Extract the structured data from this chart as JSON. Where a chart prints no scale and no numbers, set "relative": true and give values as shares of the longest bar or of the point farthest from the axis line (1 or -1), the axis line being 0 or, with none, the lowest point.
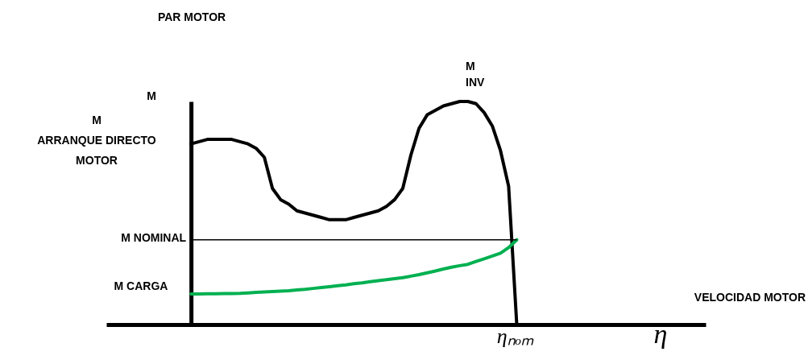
{
  "chart_data": {
    "type": "line",
    "relative": true,
    "categories": [
      null,
      null,
      null,
      null,
      null,
      null,
      null,
      null,
      null,
      null,
      null,
      null,
      null,
      null,
      null,
      null,
      null,
      null,
      null,
      null,
      null,
      null,
      null,
      null,
      null,
      null,
      null,
      null,
      null,
      null,
      null,
      null,
      null,
      null,
      null,
      null,
      null,
      null,
      null,
      null,
      null
    ],
    "series": [
      {
        "color": "#000000",
        "values": [
          0.81,
          0.82,
          0.83,
          0.83,
          0.83,
          0.83,
          0.82,
          0.81,
          0.79,
          0.75,
          0.61,
          0.56,
          0.54,
          0.51,
          0.5,
          0.49,
          0.48,
          0.47,
          0.47,
          0.47,
          0.48,
          0.49,
          0.5,
          0.51,
          0.53,
          0.56,
          0.61,
          0.76,
          0.88,
          0.94,
          0.96,
          0.98,
          0.99,
          1,
          1,
          0.99,
          0.95,
          0.89,
          0.78,
          0.62,
          0
        ]
      },
      {
        "color": "#00b050",
        "values": [
          0.137,
          0.137,
          0.138,
          0.138,
          0.139,
          0.139,
          0.14,
          0.142,
          0.144,
          0.146,
          0.148,
          0.15,
          0.152,
          0.155,
          0.158,
          0.162,
          0.166,
          0.17,
          0.174,
          0.178,
          0.183,
          0.187,
          0.192,
          0.197,
          0.201,
          0.206,
          0.21,
          0.217,
          0.224,
          0.232,
          0.24,
          0.249,
          0.257,
          0.264,
          0.27,
          0.283,
          0.295,
          0.307,
          0.32,
          0.345,
          0.38
        ]
      }
    ],
    "ref_lines": [
      {
        "axis": "y",
        "value": 0.38,
        "label": "M NOMINAL",
        "color": "#000000"
      }
    ],
    "annotations": [
      "PAR MOTOR",
      "M",
      "M\nARRANQUE DIRECTO\nMOTOR",
      "M\nINV",
      "M CARGA",
      "VELOCIDAD MOTOR",
      "ηₙₒₘ",
      "η"
    ]
  }
}
